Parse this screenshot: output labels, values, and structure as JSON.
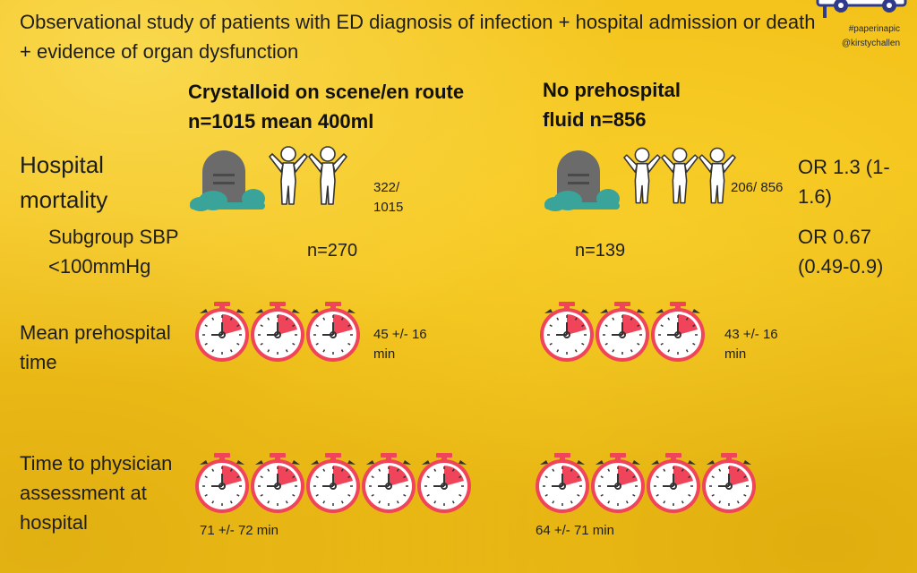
{
  "subtitle": "Observational study of patients with ED diagnosis of infection + hospital admission or death + evidence of organ dysfunction",
  "hashtag": "#paperinapic",
  "handle": "@kirstychallen",
  "columns": {
    "left_header": "Crystalloid on scene/en route n=1015 mean 400ml",
    "right_header": "No prehospital fluid n=856"
  },
  "rows": {
    "mortality": {
      "label": "Hospital mortality",
      "left_value": "322/ 1015",
      "right_value": "206/ 856",
      "or": "OR 1.3 (1-1.6)",
      "left_people_icons": 2,
      "right_people_icons": 3
    },
    "subgroup": {
      "label": "Subgroup SBP <100mmHg",
      "left_n": "n=270",
      "right_n": "n=139",
      "or": "OR 0.67 (0.49-0.9)"
    },
    "prehospital_time": {
      "label": "Mean prehospital time",
      "left_value": "45 +/- 16 min",
      "right_value": "43 +/- 16 min",
      "left_timer_icons": 3,
      "right_timer_icons": 3
    },
    "physician_time": {
      "label": "Time to physician assessment at hospital",
      "left_value": "71 +/- 72 min",
      "right_value": "64 +/- 71 min",
      "left_timer_icons": 5,
      "right_timer_icons": 4
    }
  },
  "icons": {
    "tombstone": "tombstone-icon",
    "person": "person-arms-up-icon",
    "timer": "stopwatch-icon",
    "logo": "ambulance-logo-icon"
  },
  "colors": {
    "background": "#f3c21a",
    "timer_red": "#f0445a",
    "tomb_grey": "#6b6b6b",
    "grass_teal": "#3aa39a"
  }
}
